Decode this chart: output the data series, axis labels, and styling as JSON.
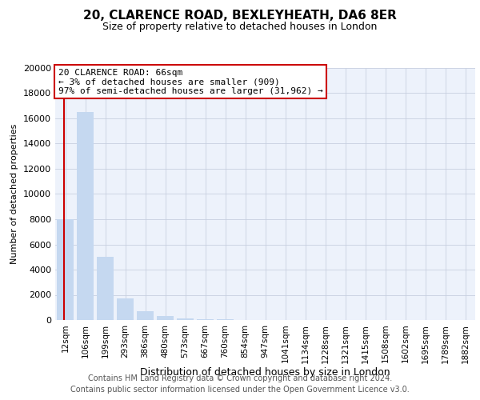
{
  "title": "20, CLARENCE ROAD, BEXLEYHEATH, DA6 8ER",
  "subtitle": "Size of property relative to detached houses in London",
  "xlabel": "Distribution of detached houses by size in London",
  "ylabel": "Number of detached properties",
  "footnote1": "Contains HM Land Registry data © Crown copyright and database right 2024.",
  "footnote2": "Contains public sector information licensed under the Open Government Licence v3.0.",
  "annotation_title": "20 CLARENCE ROAD: 66sqm",
  "annotation_line1": "← 3% of detached houses are smaller (909)",
  "annotation_line2": "97% of semi-detached houses are larger (31,962) →",
  "property_size_sqm": 66,
  "categories": [
    "12sqm",
    "106sqm",
    "199sqm",
    "293sqm",
    "386sqm",
    "480sqm",
    "573sqm",
    "667sqm",
    "760sqm",
    "854sqm",
    "947sqm",
    "1041sqm",
    "1134sqm",
    "1228sqm",
    "1321sqm",
    "1415sqm",
    "1508sqm",
    "1602sqm",
    "1695sqm",
    "1789sqm",
    "1882sqm"
  ],
  "values": [
    8000,
    16500,
    5000,
    1700,
    700,
    300,
    150,
    80,
    40,
    20,
    10,
    7,
    5,
    3,
    2,
    2,
    1,
    1,
    1,
    1,
    1
  ],
  "bar_color": "#c5d8f0",
  "highlight_bar_index": 1,
  "highlight_bar_color": "#c5d8f0",
  "background_color": "#edf2fb",
  "annotation_box_facecolor": "#ffffff",
  "annotation_box_edgecolor": "#cc0000",
  "red_line_color": "#cc0000",
  "ylim": [
    0,
    20000
  ],
  "yticks": [
    0,
    2000,
    4000,
    6000,
    8000,
    10000,
    12000,
    14000,
    16000,
    18000,
    20000
  ],
  "grid_color": "#c8d0e0",
  "title_fontsize": 11,
  "subtitle_fontsize": 9,
  "ylabel_fontsize": 8,
  "xlabel_fontsize": 9,
  "tick_fontsize": 8,
  "xtick_fontsize": 7.5,
  "annotation_fontsize": 8,
  "footnote_fontsize": 7
}
